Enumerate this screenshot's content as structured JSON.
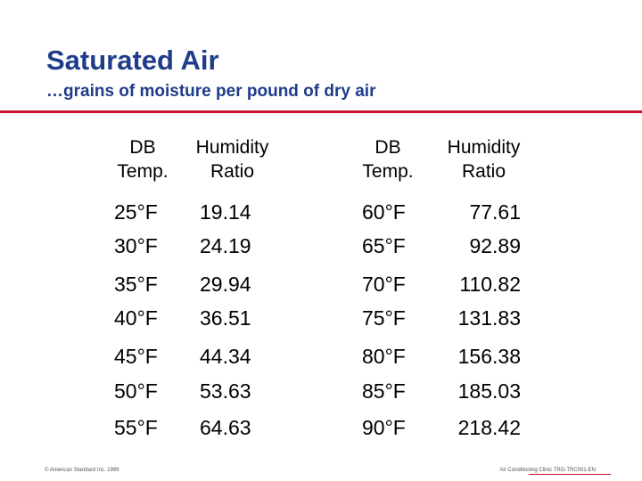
{
  "title": "Saturated Air",
  "subtitle": "…grains of moisture per pound of dry air",
  "headers": {
    "left_db": [
      "DB",
      "Temp."
    ],
    "left_hr": [
      "Humidity",
      "Ratio"
    ],
    "right_db": [
      "DB",
      "Temp."
    ],
    "right_hr": [
      "Humidity",
      "Ratio"
    ]
  },
  "left_rows": [
    {
      "temp": "25°F",
      "ratio": "19.14"
    },
    {
      "temp": "30°F",
      "ratio": "24.19"
    },
    {
      "temp": "35°F",
      "ratio": "29.94"
    },
    {
      "temp": "40°F",
      "ratio": "36.51"
    },
    {
      "temp": "45°F",
      "ratio": "44.34"
    },
    {
      "temp": "50°F",
      "ratio": "53.63"
    },
    {
      "temp": "55°F",
      "ratio": "64.63"
    }
  ],
  "right_rows": [
    {
      "temp": "60°F",
      "ratio": "77.61"
    },
    {
      "temp": "65°F",
      "ratio": "92.89"
    },
    {
      "temp": "70°F",
      "ratio": "110.82"
    },
    {
      "temp": "75°F",
      "ratio": "131.83"
    },
    {
      "temp": "80°F",
      "ratio": "156.38"
    },
    {
      "temp": "85°F",
      "ratio": "185.03"
    },
    {
      "temp": "90°F",
      "ratio": "218.42"
    }
  ],
  "footer": {
    "left": "© American Standard Inc. 1999",
    "right": "Air Conditioning Clinic TRG-TRC001-EN"
  },
  "colors": {
    "title": "#1f3c8a",
    "rule": "#c8102e"
  }
}
